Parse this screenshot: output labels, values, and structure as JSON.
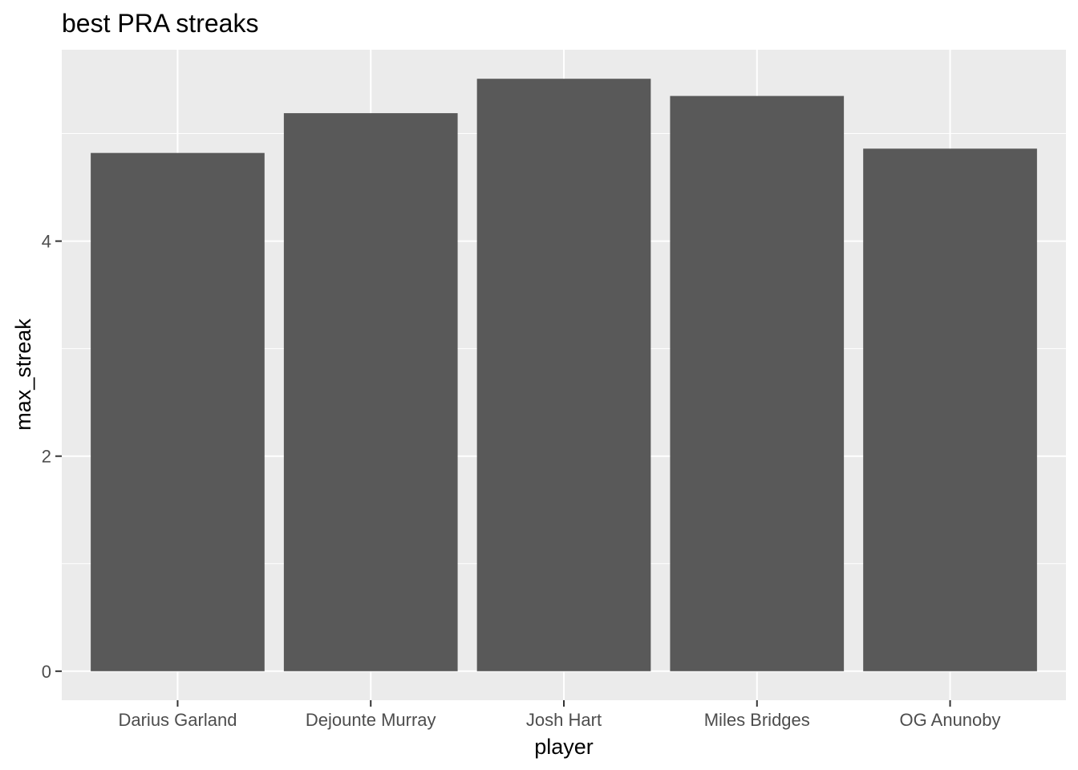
{
  "chart_data": {
    "type": "bar",
    "title": "best PRA streaks",
    "xlabel": "player",
    "ylabel": "max_streak",
    "categories": [
      "Darius Garland",
      "Dejounte Murray",
      "Josh Hart",
      "Miles Bridges",
      "OG Anunoby"
    ],
    "values": [
      4.82,
      5.19,
      5.51,
      5.35,
      4.86
    ],
    "ylim": [
      -0.27,
      5.78
    ],
    "yticks": [
      0,
      2,
      4
    ],
    "grid": true,
    "legend": "none",
    "colors": {
      "bar": "#595959",
      "panel": "#ebebeb",
      "grid": "#ffffff",
      "tick": "#333333",
      "tick_label": "#4d4d4d",
      "text": "#000000"
    }
  }
}
